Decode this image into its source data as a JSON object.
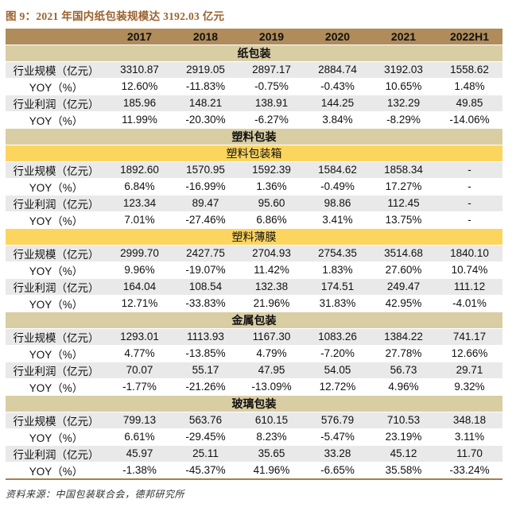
{
  "title": "图 9：2021 年国内纸包装规模达 3192.03 亿元",
  "source": "资料来源：中国包装联合会，德邦研究所",
  "colors": {
    "title_text": "#9b622f",
    "year_header_bg": "#b08c5a",
    "section_main_bg": "#d9cda3",
    "section_sub_bg": "#fcd55f",
    "row_gray_bg": "#e9e9e9",
    "table_bottom_border": "#a3804e"
  },
  "chart_data": {
    "type": "table",
    "columns": [
      "",
      "2017",
      "2018",
      "2019",
      "2020",
      "2021",
      "2022H1"
    ],
    "sections": [
      {
        "header": "纸包装",
        "style": "main",
        "rows": [
          {
            "label": "行业规模（亿元）",
            "label_align": "left",
            "values": [
              "3310.87",
              "2919.05",
              "2897.17",
              "2884.74",
              "3192.03",
              "1558.62"
            ]
          },
          {
            "label": "YOY（%）",
            "label_align": "center",
            "values": [
              "12.60%",
              "-11.83%",
              "-0.75%",
              "-0.43%",
              "10.65%",
              "1.48%"
            ]
          },
          {
            "label": "行业利润（亿元）",
            "label_align": "left",
            "values": [
              "185.96",
              "148.21",
              "138.91",
              "144.25",
              "132.29",
              "49.85"
            ]
          },
          {
            "label": "YOY（%）",
            "label_align": "center",
            "values": [
              "11.99%",
              "-20.30%",
              "-6.27%",
              "3.84%",
              "-8.29%",
              "-14.06%"
            ]
          }
        ]
      },
      {
        "header": "塑料包装",
        "style": "main",
        "rows": []
      },
      {
        "header": "塑料包装箱",
        "style": "sub",
        "rows": [
          {
            "label": "行业规模（亿元）",
            "label_align": "left",
            "values": [
              "1892.60",
              "1570.95",
              "1592.39",
              "1584.62",
              "1858.34",
              "-"
            ]
          },
          {
            "label": "YOY（%）",
            "label_align": "center",
            "values": [
              "6.84%",
              "-16.99%",
              "1.36%",
              "-0.49%",
              "17.27%",
              "-"
            ]
          },
          {
            "label": "行业利润（亿元）",
            "label_align": "left",
            "values": [
              "123.34",
              "89.47",
              "95.60",
              "98.86",
              "112.45",
              "-"
            ]
          },
          {
            "label": "YOY（%）",
            "label_align": "center",
            "values": [
              "7.01%",
              "-27.46%",
              "6.86%",
              "3.41%",
              "13.75%",
              "-"
            ]
          }
        ]
      },
      {
        "header": "塑料薄膜",
        "style": "sub",
        "rows": [
          {
            "label": "行业规模（亿元）",
            "label_align": "left",
            "values": [
              "2999.70",
              "2427.75",
              "2704.93",
              "2754.35",
              "3514.68",
              "1840.10"
            ]
          },
          {
            "label": "YOY（%）",
            "label_align": "center",
            "values": [
              "9.96%",
              "-19.07%",
              "11.42%",
              "1.83%",
              "27.60%",
              "10.74%"
            ]
          },
          {
            "label": "行业利润（亿元）",
            "label_align": "left",
            "values": [
              "164.04",
              "108.54",
              "132.38",
              "174.51",
              "249.47",
              "111.12"
            ]
          },
          {
            "label": "YOY（%）",
            "label_align": "center",
            "values": [
              "12.71%",
              "-33.83%",
              "21.96%",
              "31.83%",
              "42.95%",
              "-4.01%"
            ]
          }
        ]
      },
      {
        "header": "金属包装",
        "style": "main",
        "rows": [
          {
            "label": "行业规模（亿元）",
            "label_align": "left",
            "values": [
              "1293.01",
              "1113.93",
              "1167.30",
              "1083.26",
              "1384.22",
              "741.17"
            ]
          },
          {
            "label": "YOY（%）",
            "label_align": "center",
            "values": [
              "4.77%",
              "-13.85%",
              "4.79%",
              "-7.20%",
              "27.78%",
              "12.66%"
            ]
          },
          {
            "label": "行业利润（亿元）",
            "label_align": "left",
            "values": [
              "70.07",
              "55.17",
              "47.95",
              "54.05",
              "56.73",
              "29.71"
            ]
          },
          {
            "label": "YOY（%）",
            "label_align": "center",
            "values": [
              "-1.77%",
              "-21.26%",
              "-13.09%",
              "12.72%",
              "4.96%",
              "9.32%"
            ]
          }
        ]
      },
      {
        "header": "玻璃包装",
        "style": "main",
        "rows": [
          {
            "label": "行业规模（亿元）",
            "label_align": "left",
            "values": [
              "799.13",
              "563.76",
              "610.15",
              "576.79",
              "710.53",
              "348.18"
            ]
          },
          {
            "label": "YOY（%）",
            "label_align": "center",
            "values": [
              "6.61%",
              "-29.45%",
              "8.23%",
              "-5.47%",
              "23.19%",
              "3.11%"
            ]
          },
          {
            "label": "行业利润（亿元）",
            "label_align": "left",
            "values": [
              "45.97",
              "25.11",
              "35.65",
              "33.28",
              "45.12",
              "11.70"
            ]
          },
          {
            "label": "YOY（%）",
            "label_align": "center",
            "values": [
              "-1.38%",
              "-45.37%",
              "41.96%",
              "-6.65%",
              "35.58%",
              "-33.24%"
            ]
          }
        ]
      }
    ]
  }
}
